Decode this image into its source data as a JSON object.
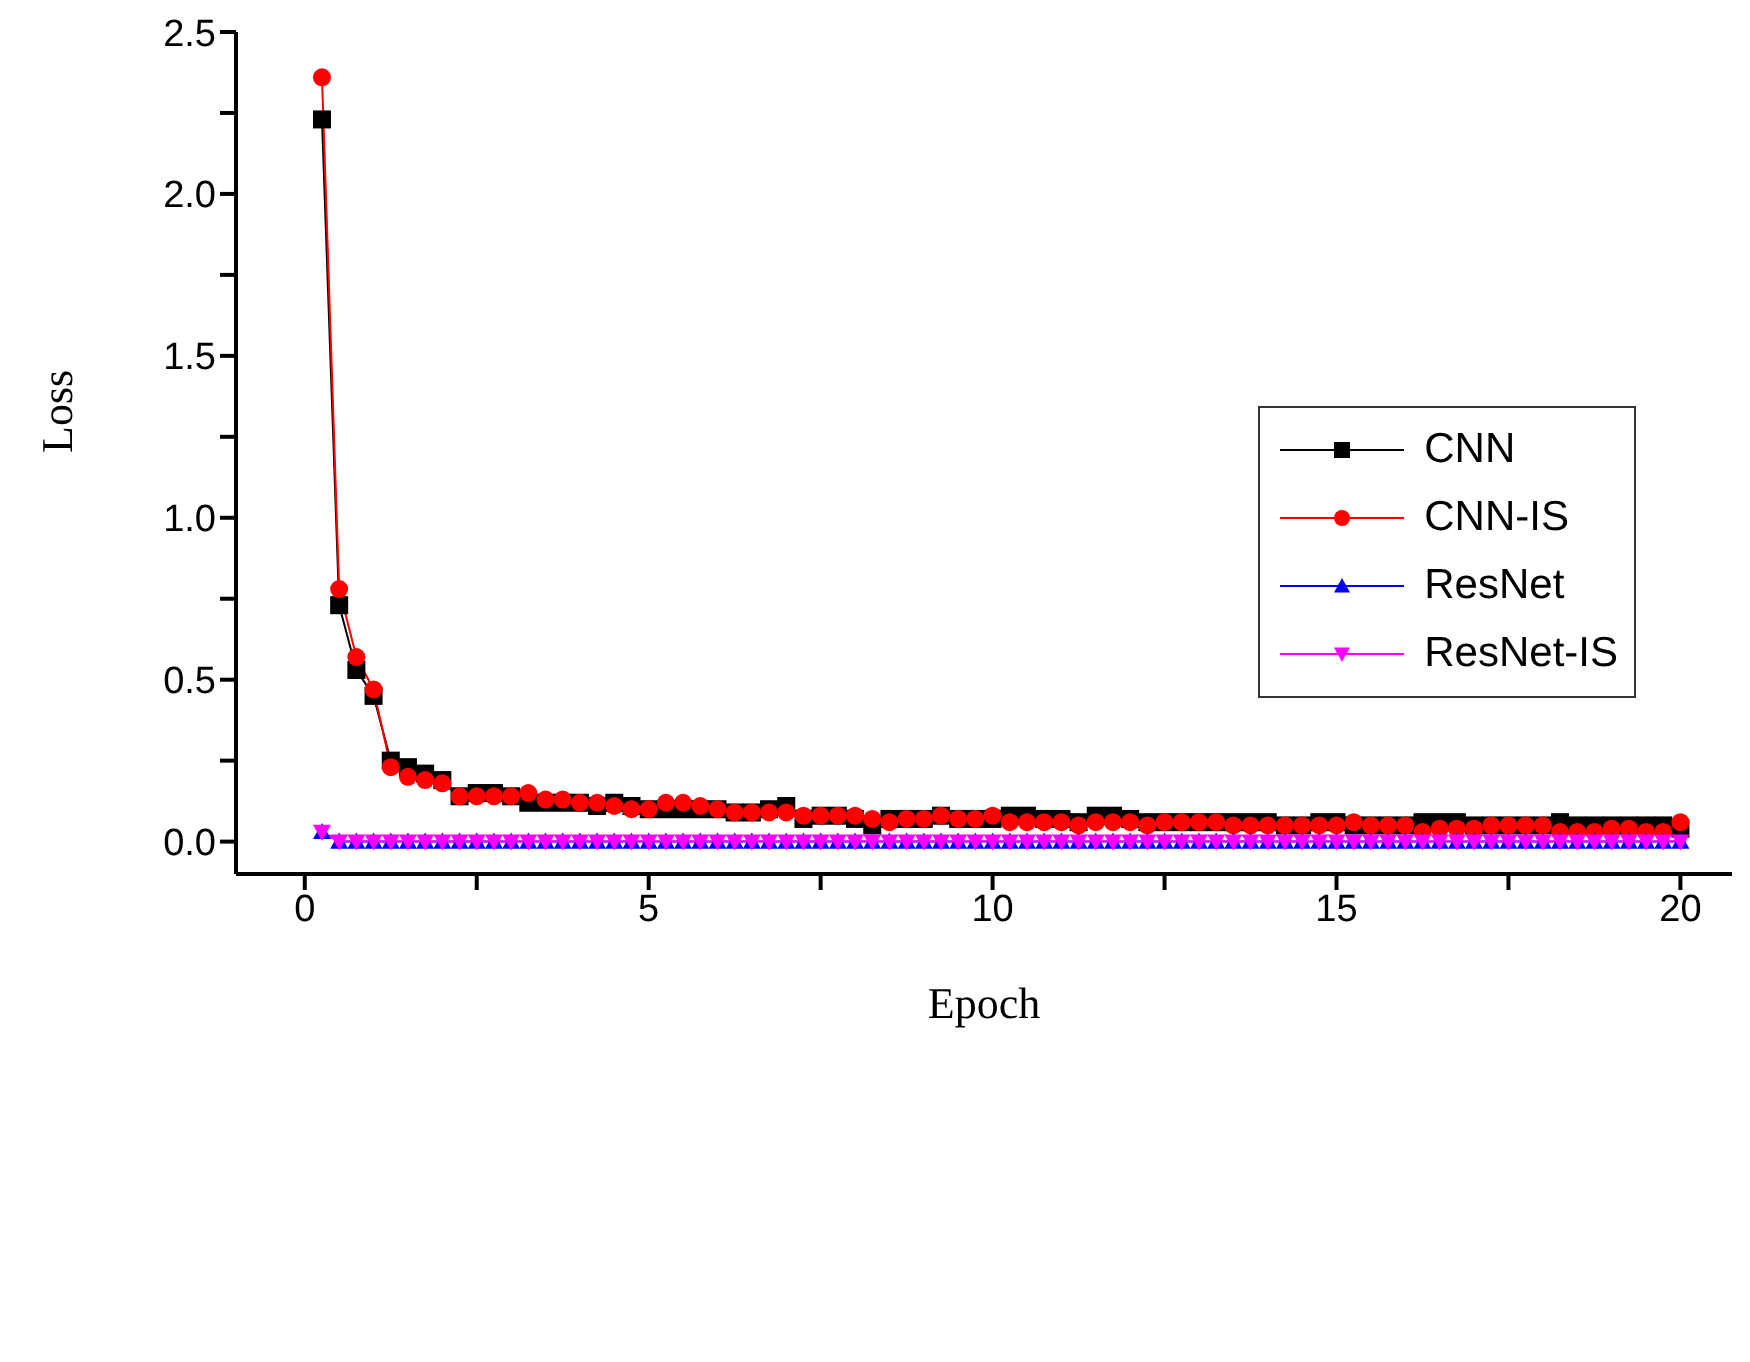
{
  "chart_data": {
    "type": "line",
    "xlabel": "Epoch",
    "ylabel": "Loss",
    "x": [
      0.25,
      0.5,
      0.75,
      1,
      1.25,
      1.5,
      1.75,
      2,
      2.25,
      2.5,
      2.75,
      3,
      3.25,
      3.5,
      3.75,
      4,
      4.25,
      4.5,
      4.75,
      5,
      5.25,
      5.5,
      5.75,
      6,
      6.25,
      6.5,
      6.75,
      7,
      7.25,
      7.5,
      7.75,
      8,
      8.25,
      8.5,
      8.75,
      9,
      9.25,
      9.5,
      9.75,
      10,
      10.25,
      10.5,
      10.75,
      11,
      11.25,
      11.5,
      11.75,
      12,
      12.25,
      12.5,
      12.75,
      13,
      13.25,
      13.5,
      13.75,
      14,
      14.25,
      14.5,
      14.75,
      15,
      15.25,
      15.5,
      15.75,
      16,
      16.25,
      16.5,
      16.75,
      17,
      17.25,
      17.5,
      17.75,
      18,
      18.25,
      18.5,
      18.75,
      19,
      19.25,
      19.5,
      19.75,
      20
    ],
    "series": [
      {
        "name": "CNN",
        "color": "#000000",
        "marker": "square",
        "values": [
          2.23,
          0.73,
          0.53,
          0.45,
          0.25,
          0.23,
          0.21,
          0.19,
          0.14,
          0.15,
          0.15,
          0.14,
          0.12,
          0.12,
          0.12,
          0.12,
          0.11,
          0.12,
          0.11,
          0.1,
          0.1,
          0.1,
          0.1,
          0.1,
          0.09,
          0.09,
          0.1,
          0.11,
          0.07,
          0.08,
          0.08,
          0.07,
          0.05,
          0.07,
          0.07,
          0.07,
          0.08,
          0.07,
          0.07,
          0.07,
          0.08,
          0.08,
          0.07,
          0.07,
          0.06,
          0.08,
          0.08,
          0.07,
          0.06,
          0.06,
          0.06,
          0.06,
          0.06,
          0.06,
          0.06,
          0.06,
          0.05,
          0.05,
          0.06,
          0.06,
          0.05,
          0.05,
          0.05,
          0.05,
          0.06,
          0.06,
          0.06,
          0.05,
          0.05,
          0.05,
          0.05,
          0.05,
          0.06,
          0.05,
          0.05,
          0.05,
          0.05,
          0.05,
          0.05,
          0.04
        ]
      },
      {
        "name": "CNN-IS",
        "color": "#ff0000",
        "marker": "circle",
        "values": [
          2.36,
          0.78,
          0.57,
          0.47,
          0.23,
          0.2,
          0.19,
          0.18,
          0.14,
          0.14,
          0.14,
          0.14,
          0.15,
          0.13,
          0.13,
          0.12,
          0.12,
          0.11,
          0.1,
          0.1,
          0.12,
          0.12,
          0.11,
          0.1,
          0.09,
          0.09,
          0.09,
          0.09,
          0.08,
          0.08,
          0.08,
          0.08,
          0.07,
          0.06,
          0.07,
          0.07,
          0.08,
          0.07,
          0.07,
          0.08,
          0.06,
          0.06,
          0.06,
          0.06,
          0.05,
          0.06,
          0.06,
          0.06,
          0.05,
          0.06,
          0.06,
          0.06,
          0.06,
          0.05,
          0.05,
          0.05,
          0.05,
          0.05,
          0.05,
          0.05,
          0.06,
          0.05,
          0.05,
          0.05,
          0.03,
          0.04,
          0.04,
          0.04,
          0.05,
          0.05,
          0.05,
          0.05,
          0.03,
          0.03,
          0.03,
          0.04,
          0.04,
          0.03,
          0.03,
          0.06
        ]
      },
      {
        "name": "ResNet",
        "color": "#0000ff",
        "marker": "triangle",
        "values": [
          0.03,
          0,
          0,
          0,
          0,
          0,
          0,
          0,
          0,
          0,
          0,
          0,
          0,
          0,
          0,
          0,
          0,
          0,
          0,
          0,
          0,
          0,
          0,
          0,
          0,
          0,
          0,
          0,
          0,
          0,
          0,
          0,
          0,
          0,
          0,
          0,
          0,
          0,
          0,
          0,
          0,
          0,
          0,
          0,
          0,
          0,
          0,
          0,
          0,
          0,
          0,
          0,
          0,
          0,
          0,
          0,
          0,
          0,
          0,
          0,
          0,
          0,
          0,
          0,
          0,
          0,
          0,
          0,
          0,
          0,
          0,
          0,
          0,
          0,
          0,
          0,
          0,
          0,
          0,
          0
        ]
      },
      {
        "name": "ResNet-IS",
        "color": "#ff00ff",
        "marker": "triangle-down",
        "values": [
          0.03,
          0,
          0,
          0,
          0,
          0,
          0,
          0,
          0,
          0,
          0,
          0,
          0,
          0,
          0,
          0,
          0,
          0,
          0,
          0,
          0,
          0,
          0,
          0,
          0,
          0,
          0,
          0,
          0,
          0,
          0,
          0,
          0,
          0,
          0,
          0,
          0,
          0,
          0,
          0,
          0,
          0,
          0,
          0,
          0,
          0,
          0,
          0,
          0,
          0,
          0,
          0,
          0,
          0,
          0,
          0,
          0,
          0,
          0,
          0,
          0,
          0,
          0,
          0,
          0,
          0,
          0,
          0,
          0,
          0,
          0,
          0,
          0,
          0,
          0,
          0,
          0,
          0,
          0,
          0
        ]
      }
    ],
    "xlim": [
      -1,
      20.75
    ],
    "xticks": [
      0,
      {
        "value": 2.5,
        "label": null
      },
      5,
      {
        "value": 7.5,
        "label": null
      },
      10,
      {
        "value": 12.5,
        "label": null
      },
      15,
      {
        "value": 17.5,
        "label": null
      },
      20
    ],
    "ylim": [
      -0.1,
      2.5
    ],
    "yticks": [
      {
        "value": 0,
        "label": "0.0"
      },
      {
        "value": 0.25,
        "label": null
      },
      {
        "value": 0.5,
        "label": "0.5"
      },
      {
        "value": 0.75,
        "label": null
      },
      {
        "value": 1,
        "label": "1.0"
      },
      {
        "value": 1.25,
        "label": null
      },
      {
        "value": 1.5,
        "label": "1.5"
      },
      {
        "value": 1.75,
        "label": null
      },
      {
        "value": 2,
        "label": "2.0"
      },
      {
        "value": 2.25,
        "label": null
      },
      {
        "value": 2.5,
        "label": "2.5"
      }
    ],
    "legend": "right",
    "grid": false,
    "line_style": "solid"
  }
}
